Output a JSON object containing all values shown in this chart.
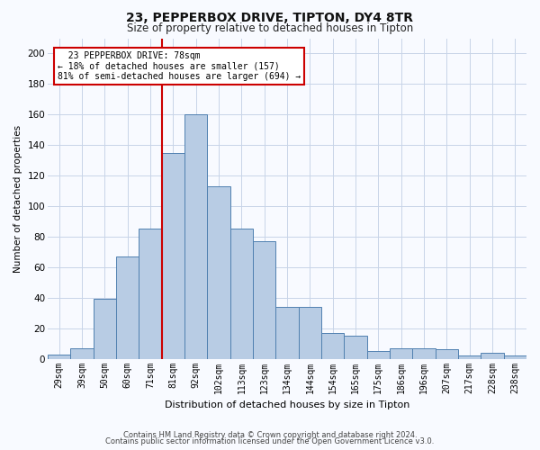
{
  "title1": "23, PEPPERBOX DRIVE, TIPTON, DY4 8TR",
  "title2": "Size of property relative to detached houses in Tipton",
  "xlabel": "Distribution of detached houses by size in Tipton",
  "ylabel": "Number of detached properties",
  "categories": [
    "29sqm",
    "39sqm",
    "50sqm",
    "60sqm",
    "71sqm",
    "81sqm",
    "92sqm",
    "102sqm",
    "113sqm",
    "123sqm",
    "134sqm",
    "144sqm",
    "154sqm",
    "165sqm",
    "175sqm",
    "186sqm",
    "196sqm",
    "207sqm",
    "217sqm",
    "228sqm",
    "238sqm"
  ],
  "values": [
    3,
    7,
    39,
    67,
    85,
    135,
    160,
    113,
    85,
    77,
    34,
    34,
    17,
    15,
    5,
    7,
    7,
    6,
    2,
    4,
    2
  ],
  "bar_color": "#b8cce4",
  "bar_edge_color": "#5080b0",
  "vline_x": 4.5,
  "vline_color": "#cc0000",
  "annotation_text": "  23 PEPPERBOX DRIVE: 78sqm  \n← 18% of detached houses are smaller (157)\n81% of semi-detached houses are larger (694) →",
  "annotation_box_color": "#cc0000",
  "ylim": [
    0,
    210
  ],
  "yticks": [
    0,
    20,
    40,
    60,
    80,
    100,
    120,
    140,
    160,
    180,
    200
  ],
  "footer1": "Contains HM Land Registry data © Crown copyright and database right 2024.",
  "footer2": "Contains public sector information licensed under the Open Government Licence v3.0.",
  "background_color": "#f8faff",
  "grid_color": "#c8d4e8",
  "title1_fontsize": 10,
  "title2_fontsize": 8.5,
  "xlabel_fontsize": 8,
  "ylabel_fontsize": 7.5,
  "tick_fontsize": 7,
  "footer_fontsize": 6,
  "annot_fontsize": 7
}
